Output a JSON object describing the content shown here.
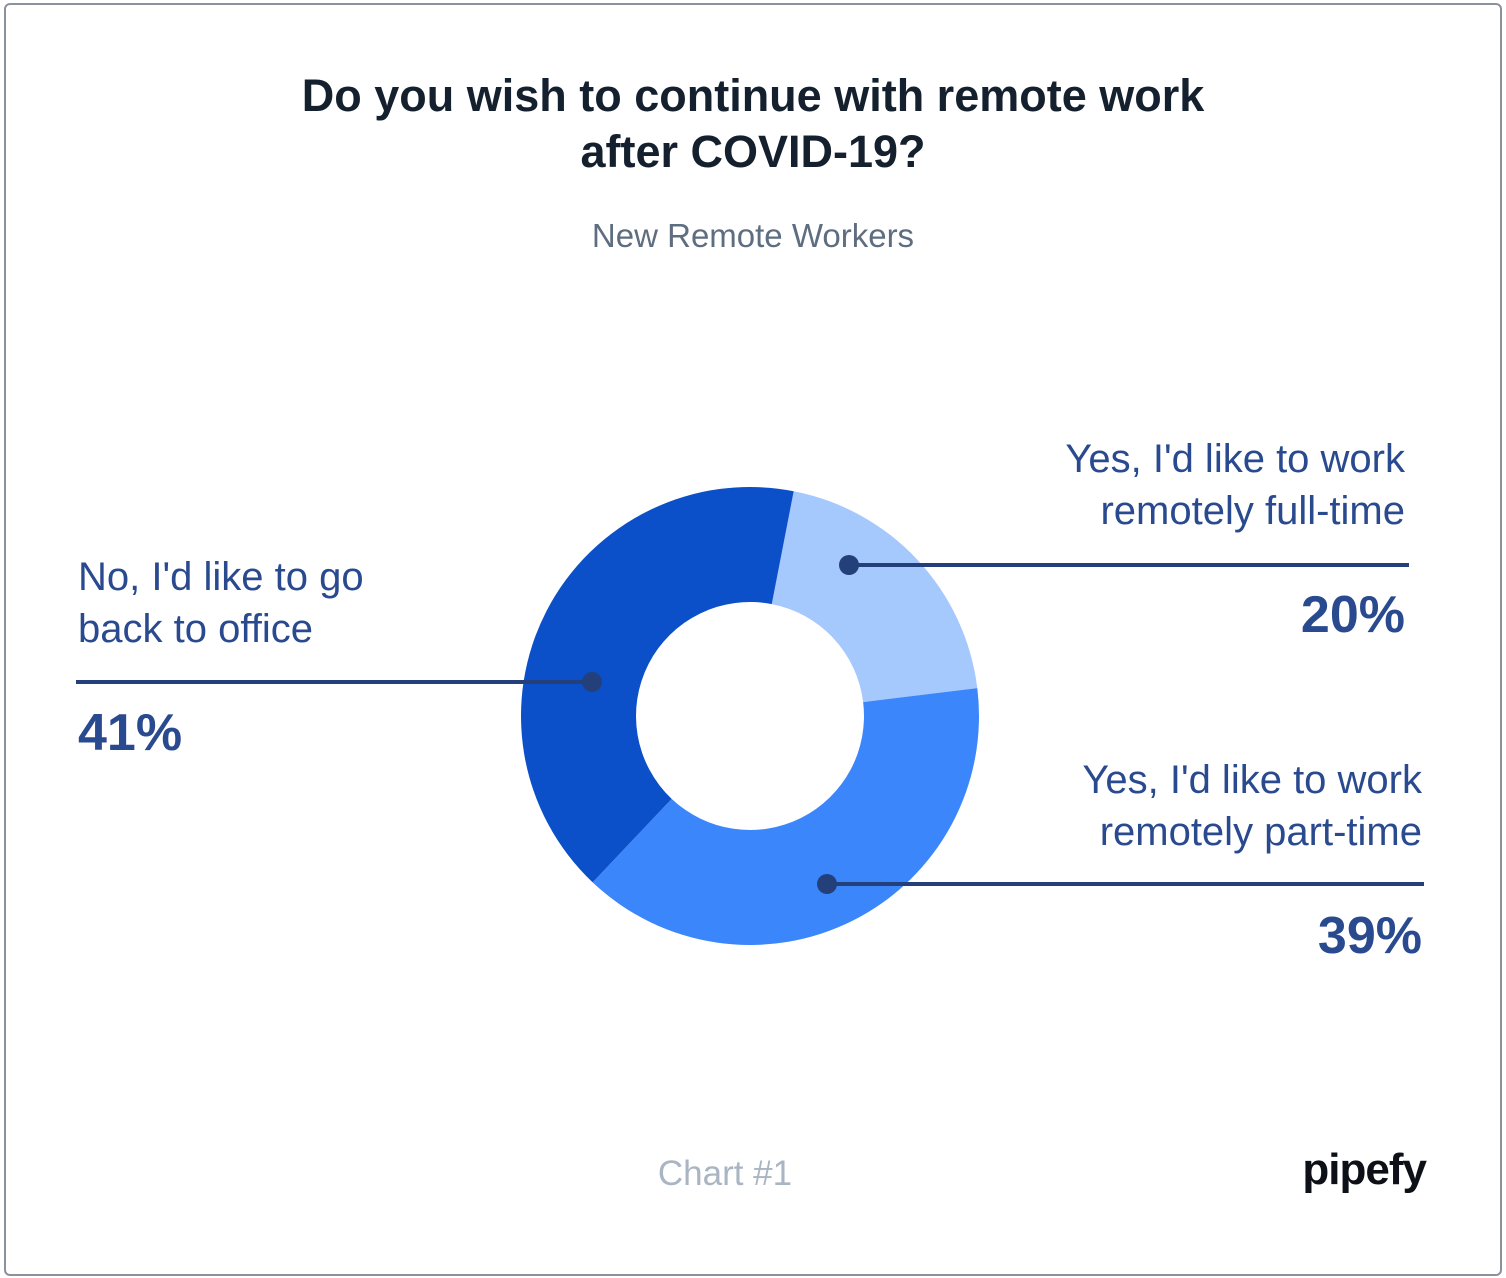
{
  "title_lines": [
    "Do you wish to continue with remote work",
    "after COVID-19?"
  ],
  "subtitle": "New Remote Workers",
  "footer_label": "Chart #1",
  "brand": "pipefy",
  "chart_data": {
    "type": "pie",
    "donut": true,
    "title": "Do you wish to continue with remote work after COVID-19?",
    "subtitle": "New Remote Workers",
    "slices": [
      {
        "label_lines": [
          "Yes, I'd like to work",
          "remotely full-time"
        ],
        "value": 20,
        "value_label": "20%",
        "color": "#a5c8fd"
      },
      {
        "label_lines": [
          "Yes, I'd like to work",
          "remotely part-time"
        ],
        "value": 39,
        "value_label": "39%",
        "color": "#3c86fb"
      },
      {
        "label_lines": [
          "No, I'd like to go",
          "back to office"
        ],
        "value": 41,
        "value_label": "41%",
        "color": "#0b50c9"
      }
    ],
    "callout_color": "#24407a"
  }
}
